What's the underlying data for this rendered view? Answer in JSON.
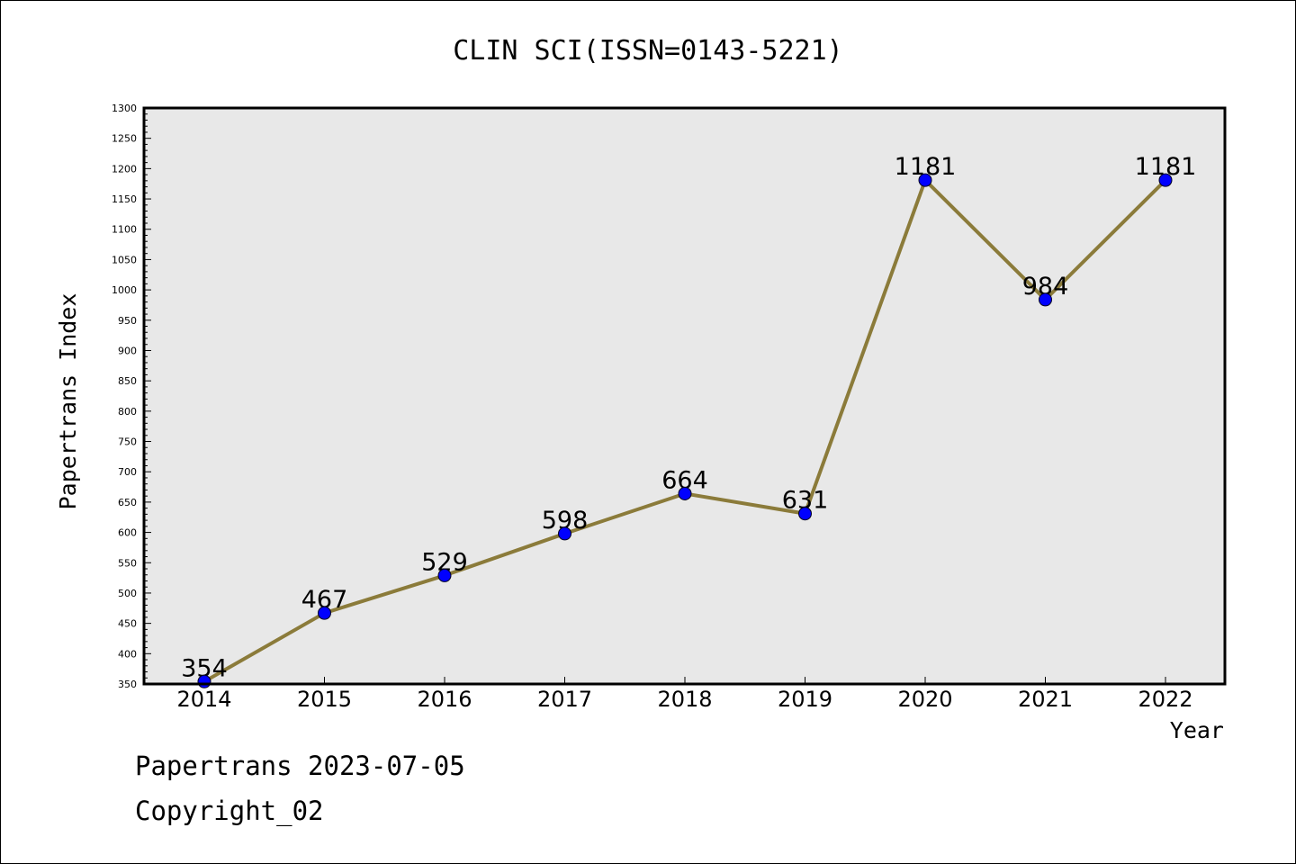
{
  "chart_data": {
    "type": "line",
    "title": "CLIN SCI(ISSN=0143-5221)",
    "xlabel": "Year",
    "ylabel": "Papertrans Index",
    "x": [
      "2014",
      "2015",
      "2016",
      "2017",
      "2018",
      "2019",
      "2020",
      "2021",
      "2022"
    ],
    "series": [
      {
        "values": [
          354,
          467,
          529,
          598,
          664,
          631,
          1181,
          984,
          1181
        ]
      }
    ],
    "data_labels": [
      "354",
      "467",
      "529",
      "598",
      "664",
      "631",
      "1181",
      "984",
      "1181"
    ],
    "ylim": [
      350,
      1300
    ],
    "y_ticks": [
      350,
      400,
      450,
      500,
      550,
      600,
      650,
      700,
      750,
      800,
      850,
      900,
      950,
      1000,
      1050,
      1100,
      1150,
      1200,
      1250,
      1300
    ],
    "y_minor_step": 10,
    "grid": false,
    "legend": "none",
    "colors": {
      "line": "#8B7B3A",
      "marker": "#0000FF",
      "plot_background": "#E8E8E8"
    }
  },
  "footer": {
    "line1": "Papertrans 2023-07-05",
    "line2": "Copyright_02"
  }
}
